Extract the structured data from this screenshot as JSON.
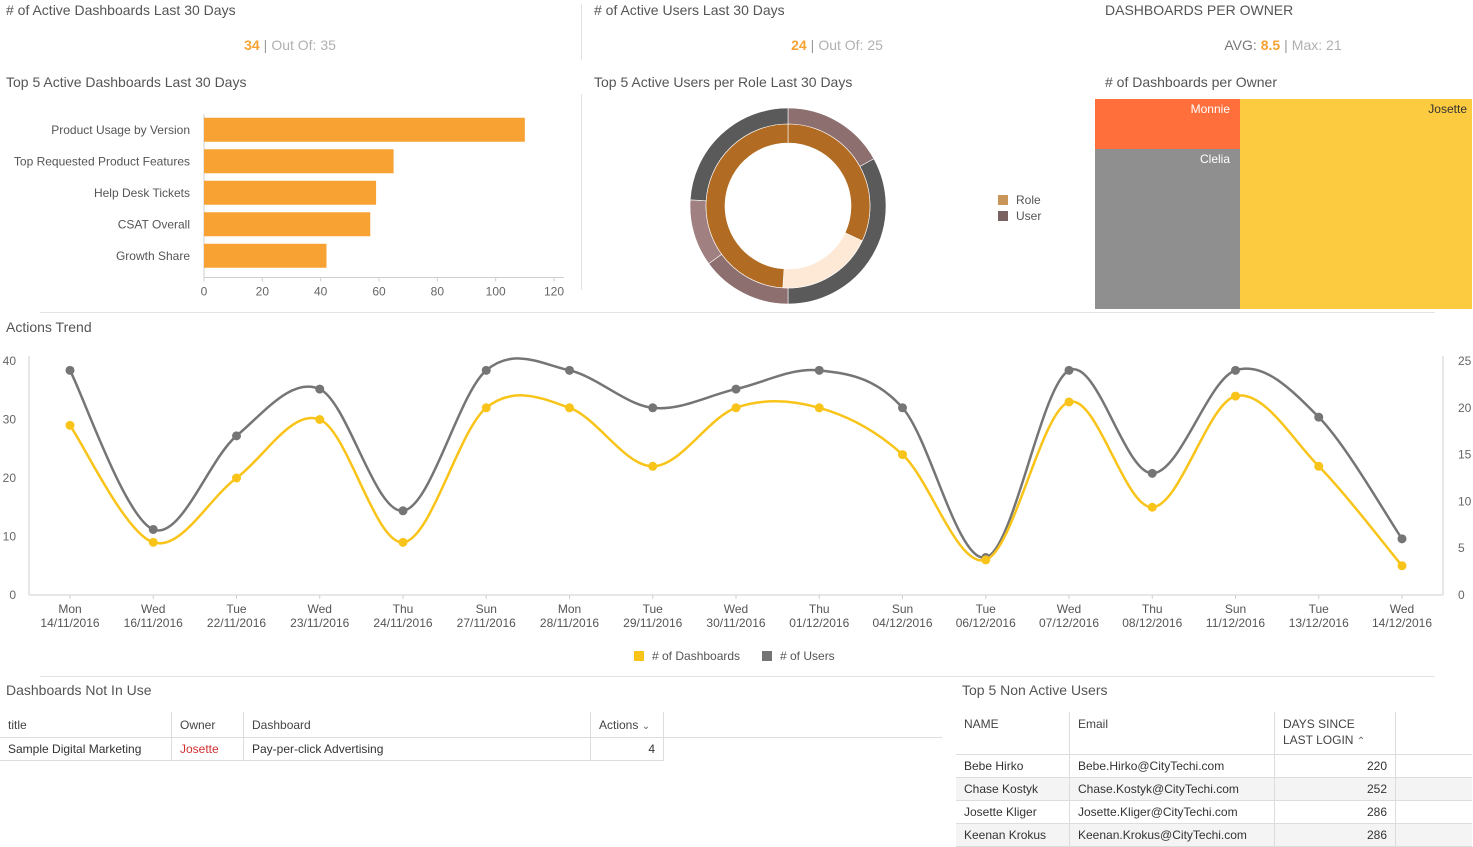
{
  "kpis": {
    "active_dashboards": {
      "title": "# of Active Dashboards Last 30 Days",
      "value": "34",
      "sep": "|",
      "label": "Out Of:",
      "total": "35"
    },
    "active_users": {
      "title": "# of Active Users Last 30 Days",
      "value": "24",
      "sep": "|",
      "label": "Out Of:",
      "total": "25"
    },
    "per_owner": {
      "title": "DASHBOARDS PER OWNER",
      "avg_label": "AVG:",
      "avg": "8.5",
      "sep": "|",
      "max_label": "Max:",
      "max": "21"
    }
  },
  "bar_widget": {
    "title": "Top 5 Active Dashboards Last 30 Days"
  },
  "donut_widget": {
    "title": "Top 5 Active Users per Role Last 30 Days",
    "legend": [
      {
        "label": "Role",
        "color": "#c8955a"
      },
      {
        "label": "User",
        "color": "#7b6262"
      }
    ]
  },
  "treemap_widget": {
    "title": "# of Dashboards per Owner",
    "cells": [
      {
        "label": "Monnie",
        "color": "#ff6f3c"
      },
      {
        "label": "Josette",
        "color": "#fccb3f"
      },
      {
        "label": "Clelia",
        "color": "#8f8f8f"
      }
    ]
  },
  "trend_widget": {
    "title": "Actions Trend"
  },
  "chart_data": [
    {
      "type": "bar",
      "orientation": "horizontal",
      "categories": [
        "Product Usage by Version",
        "Top Requested Product Features",
        "Help Desk Tickets",
        "CSAT Overall",
        "Growth Share"
      ],
      "values": [
        110,
        65,
        59,
        57,
        42
      ],
      "xlim": [
        0,
        120
      ],
      "xticks": [
        0,
        20,
        40,
        60,
        80,
        100,
        120
      ],
      "color": "#f7a233",
      "grid": false
    },
    {
      "type": "pie",
      "variant": "double-donut",
      "series": [
        {
          "name": "Role",
          "values": [
            32,
            19,
            49
          ],
          "colors": [
            "#b26b22",
            "#fde9d6",
            "#b26b22"
          ]
        },
        {
          "name": "User",
          "values": [
            17,
            33,
            15,
            11,
            24
          ],
          "colors": [
            "#8d6f6f",
            "#5a5a5a",
            "#8d6f6f",
            "#a08080",
            "#5a5a5a"
          ]
        }
      ],
      "legend_position": "right"
    },
    {
      "type": "line",
      "x_day": [
        "Mon",
        "Wed",
        "Tue",
        "Wed",
        "Thu",
        "Sun",
        "Mon",
        "Tue",
        "Wed",
        "Thu",
        "Sun",
        "Tue",
        "Wed",
        "Thu",
        "Sun",
        "Tue",
        "Wed"
      ],
      "x_date": [
        "14/11/2016",
        "16/11/2016",
        "22/11/2016",
        "23/11/2016",
        "24/11/2016",
        "27/11/2016",
        "28/11/2016",
        "29/11/2016",
        "30/11/2016",
        "01/12/2016",
        "04/12/2016",
        "06/12/2016",
        "07/12/2016",
        "08/12/2016",
        "11/12/2016",
        "13/12/2016",
        "14/12/2016"
      ],
      "series": [
        {
          "name": "# of Dashboards",
          "axis": "left",
          "color": "#f9c419",
          "values": [
            29,
            9,
            20,
            30,
            9,
            32,
            32,
            22,
            32,
            32,
            24,
            6,
            33,
            15,
            34,
            22,
            5
          ]
        },
        {
          "name": "# of Users",
          "axis": "right",
          "color": "#757575",
          "values": [
            24,
            7,
            17,
            22,
            9,
            24,
            24,
            20,
            22,
            24,
            20,
            4,
            24,
            13,
            24,
            19,
            6
          ]
        }
      ],
      "ylim_left": [
        0,
        40
      ],
      "yticks_left": [
        0,
        10,
        20,
        30,
        40
      ],
      "ylim_right": [
        0,
        25
      ],
      "yticks_right": [
        0,
        5,
        10,
        15,
        20,
        25
      ],
      "legend_position": "bottom"
    }
  ],
  "not_in_use": {
    "title": "Dashboards Not In Use",
    "columns": [
      "title",
      "Owner",
      "Dashboard",
      "Actions"
    ],
    "sort_icon": "chevron-down-icon",
    "rows": [
      {
        "title": "Sample Digital Marketing",
        "owner": "Josette",
        "dashboard": "Pay-per-click Advertising",
        "actions": "4"
      }
    ]
  },
  "non_active_users": {
    "title": "Top 5 Non Active Users",
    "columns": [
      "NAME",
      "Email",
      "DAYS SINCE LAST LOGIN"
    ],
    "sort_icon": "chevron-up-icon",
    "rows": [
      {
        "name": "Bebe Hirko",
        "email": "Bebe.Hirko@CityTechi.com",
        "days": "220"
      },
      {
        "name": "Chase Kostyk",
        "email": "Chase.Kostyk@CityTechi.com",
        "days": "252"
      },
      {
        "name": "Josette Kliger",
        "email": "Josette.Kliger@CityTechi.com",
        "days": "286"
      },
      {
        "name": "Keenan Krokus",
        "email": "Keenan.Krokus@CityTechi.com",
        "days": "286"
      }
    ]
  }
}
